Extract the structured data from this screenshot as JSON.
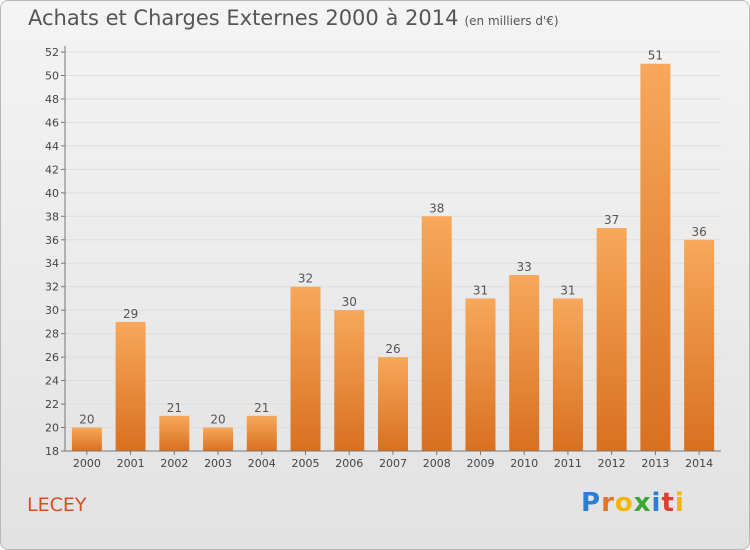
{
  "header": {
    "title": "Achats et Charges Externes 2000 à 2014",
    "subtitle": "(en milliers d'€)"
  },
  "footer": {
    "place": "LECEY",
    "logo_letters": [
      "P",
      "r",
      "o",
      "x",
      "i",
      "t",
      "i"
    ],
    "logo_colors": [
      "#2a7fd4",
      "#e0742a",
      "#f2b705",
      "#3aa635",
      "#2a7fd4",
      "#e03c31",
      "#f2b705"
    ]
  },
  "colors": {
    "bar_top": "#f7a85a",
    "bar_bottom": "#d97020",
    "grid": "#dddddd",
    "axis": "#777777"
  },
  "chart_data": {
    "type": "bar",
    "title": "Achats et Charges Externes 2000 à 2014",
    "subtitle": "(en milliers d'€)",
    "categories": [
      "2000",
      "2001",
      "2002",
      "2003",
      "2004",
      "2005",
      "2006",
      "2007",
      "2008",
      "2009",
      "2010",
      "2011",
      "2012",
      "2013",
      "2014"
    ],
    "values": [
      20,
      29,
      21,
      20,
      21,
      32,
      30,
      26,
      38,
      31,
      33,
      31,
      37,
      51,
      36
    ],
    "ylim": [
      18,
      52
    ],
    "yticks": [
      18,
      20,
      22,
      24,
      26,
      28,
      30,
      32,
      34,
      36,
      38,
      40,
      42,
      44,
      46,
      48,
      50,
      52
    ],
    "grid": true
  }
}
